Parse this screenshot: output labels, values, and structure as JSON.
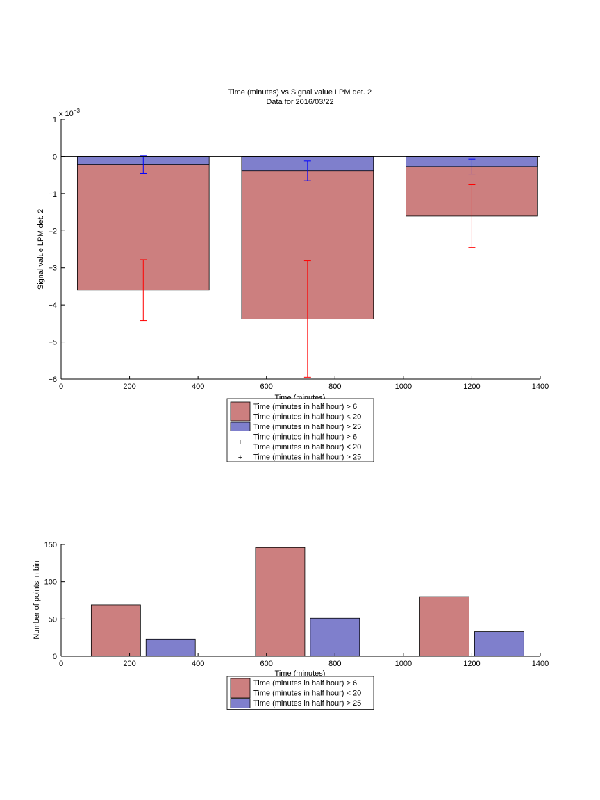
{
  "chart_data": [
    {
      "type": "bar",
      "title": "Time (minutes) vs Signal value LPM det. 2",
      "subtitle": "Data for 2016/03/22",
      "xlabel": "Time (minutes)",
      "ylabel": "Signal value LPM det. 2",
      "exponent_label": "x 10",
      "exponent_power": "−3",
      "xlim": [
        0,
        1400
      ],
      "ylim": [
        -6,
        1
      ],
      "xticks": [
        0,
        200,
        400,
        600,
        800,
        1000,
        1200,
        1400
      ],
      "yticks": [
        -6,
        -5,
        -4,
        -3,
        -2,
        -1,
        0,
        1
      ],
      "categories": [
        240,
        720,
        1200
      ],
      "bar_width": 385,
      "series": [
        {
          "name": "Time (minutes in half hour) > 6 Time (minutes in half hour) < 20",
          "color": "#cc7f7f",
          "values": [
            -3.6,
            -4.38,
            -1.6
          ],
          "err_color": "#ff0000",
          "err_mean": [
            -3.6,
            -4.38,
            -1.6
          ],
          "err_lo": [
            -4.42,
            -5.95,
            -2.45
          ],
          "err_hi": [
            -2.78,
            -2.81,
            -0.75
          ]
        },
        {
          "name": "Time (minutes in half hour) > 25",
          "color": "#7f7fcc",
          "values": [
            -0.21,
            -0.38,
            -0.27
          ],
          "err_color": "#0000ff",
          "err_mean": [
            -0.21,
            -0.38,
            -0.27
          ],
          "err_lo": [
            -0.45,
            -0.65,
            -0.47
          ],
          "err_hi": [
            0.03,
            -0.12,
            -0.07
          ]
        }
      ],
      "legend": {
        "entries": [
          {
            "kind": "patch",
            "color": "#cc7f7f",
            "lines": [
              "Time (minutes in half hour) > 6",
              "Time (minutes in half hour) < 20"
            ]
          },
          {
            "kind": "patch",
            "color": "#7f7fcc",
            "lines": [
              "Time (minutes in half hour) > 25"
            ]
          },
          {
            "kind": "marker",
            "color": "#ff0000",
            "lines": [
              "Time (minutes in half hour) > 6",
              "Time (minutes in half hour) < 20"
            ]
          },
          {
            "kind": "marker",
            "color": "#0000ff",
            "lines": [
              "Time (minutes in half hour) > 25"
            ]
          }
        ]
      }
    },
    {
      "type": "bar",
      "title": "",
      "xlabel": "Time (minutes)",
      "ylabel": "Number of points in bin",
      "xlim": [
        0,
        1400
      ],
      "ylim": [
        0,
        150
      ],
      "xticks": [
        0,
        200,
        400,
        600,
        800,
        1000,
        1200,
        1400
      ],
      "yticks": [
        0,
        50,
        100,
        150
      ],
      "series": [
        {
          "name": "Time (minutes in half hour) > 6 Time (minutes in half hour) < 20",
          "color": "#cc7f7f",
          "x_center": [
            160,
            640,
            1120
          ],
          "width": 144,
          "values": [
            69,
            146,
            80
          ]
        },
        {
          "name": "Time (minutes in half hour) > 25",
          "color": "#7f7fcc",
          "x_center": [
            320,
            800,
            1280
          ],
          "width": 144,
          "values": [
            23,
            51,
            33
          ]
        }
      ],
      "legend": {
        "entries": [
          {
            "kind": "patch",
            "color": "#cc7f7f",
            "lines": [
              "Time (minutes in half hour) > 6",
              "Time (minutes in half hour) < 20"
            ]
          },
          {
            "kind": "patch",
            "color": "#7f7fcc",
            "lines": [
              "Time (minutes in half hour) > 25"
            ]
          }
        ]
      }
    }
  ]
}
